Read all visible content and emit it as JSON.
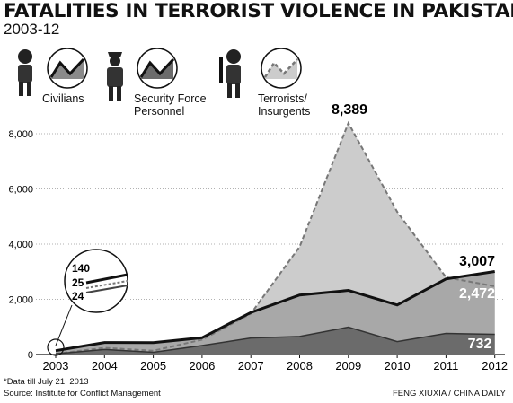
{
  "header": {
    "title": "FATALITIES IN TERRORIST VIOLENCE IN PAKISTAN",
    "subtitle": "2003-12"
  },
  "legend": [
    {
      "label_line1": "Civilians",
      "label_line2": "",
      "icon": "civilian-figure-icon",
      "swatch": "dark-solid-line"
    },
    {
      "label_line1": "Security Force",
      "label_line2": "Personnel",
      "icon": "police-officer-icon",
      "swatch": "medium-solid-line"
    },
    {
      "label_line1": "Terrorists/",
      "label_line2": "Insurgents",
      "icon": "armed-militant-icon",
      "swatch": "dashed-line"
    }
  ],
  "chart_data": {
    "type": "area",
    "categories": [
      "2003",
      "2004",
      "2005",
      "2006",
      "2007",
      "2008",
      "2009",
      "2010",
      "2011",
      "2012"
    ],
    "yticks": [
      "0",
      "2,000",
      "4,000",
      "6,000",
      "8,000"
    ],
    "ylim": [
      0,
      8400
    ],
    "grid": true,
    "series": [
      {
        "name": "Civilians",
        "values": [
          140,
          435,
          430,
          608,
          1522,
          2155,
          2324,
          1796,
          2738,
          3007
        ]
      },
      {
        "name": "Security Force Personnel",
        "values": [
          24,
          184,
          81,
          325,
          597,
          654,
          991,
          469,
          765,
          732
        ]
      },
      {
        "name": "Terrorists/ Insurgents",
        "values": [
          25,
          244,
          137,
          538,
          1479,
          3906,
          8389,
          5170,
          2800,
          2472
        ]
      }
    ],
    "annotations": {
      "peak_label": "8,389",
      "end_civilians": "3,007",
      "end_terrorists": "2,472",
      "end_security": "732",
      "inset_labels": [
        "140",
        "25",
        "24"
      ]
    },
    "colors": {
      "terrorists_area": "#cccccc",
      "civilians_area": "#a8a8a8",
      "security_area": "#6b6b6b",
      "line": "#111111",
      "dashed_line": "#777777"
    }
  },
  "footer": {
    "note": "*Data till July 21, 2013",
    "source": "Source: Institute for Conflict Management",
    "credit": "FENG XIUXIA / CHINA DAILY"
  }
}
